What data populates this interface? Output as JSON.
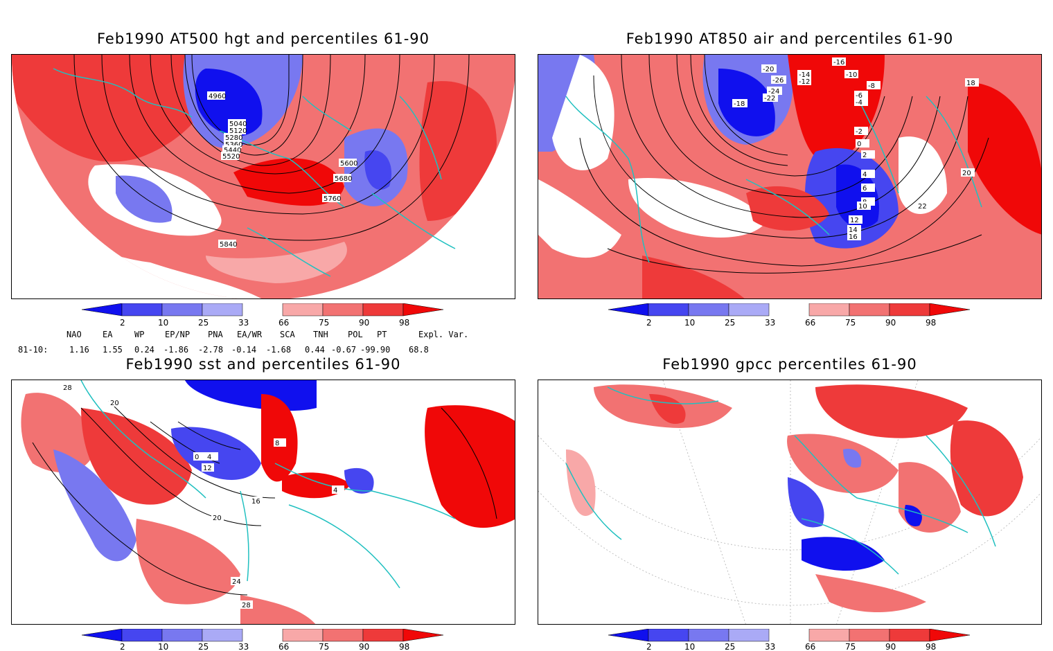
{
  "panels": [
    {
      "id": "p1",
      "title": "Feb1990 AT500 hgt and percentiles 61-90",
      "contour_labels": [
        "4960",
        "5040",
        "5120",
        "5280",
        "5360",
        "5440",
        "5520",
        "5600",
        "5680",
        "5760",
        "5840"
      ]
    },
    {
      "id": "p2",
      "title": "Feb1990 AT850 air and percentiles 61-90",
      "contour_labels": [
        "-16",
        "-14",
        "-12",
        "-10",
        "-8",
        "-6",
        "-4",
        "-2",
        "0",
        "2",
        "4",
        "6",
        "8",
        "10",
        "12",
        "14",
        "16",
        "18",
        "20",
        "22",
        "-18",
        "-20",
        "-26",
        "-24",
        "-22"
      ]
    },
    {
      "id": "p3",
      "title": "Feb1990 sst and percentiles 61-90",
      "contour_labels": [
        "28",
        "20",
        "4",
        "8",
        "0",
        "12",
        "16",
        "20",
        "24",
        "28",
        "4"
      ]
    },
    {
      "id": "p4",
      "title": "Feb1990 gpcc percentiles 61-90",
      "contour_labels": []
    }
  ],
  "colorbar": {
    "ticks": [
      "2",
      "10",
      "25",
      "33",
      "66",
      "75",
      "90",
      "98"
    ],
    "colors": {
      "b1": "#1010ee",
      "b2": "#4646f0",
      "b3": "#7878f0",
      "b4": "#aaaaf6",
      "r1": "#f8a8a8",
      "r2": "#f27272",
      "r3": "#ee3a3a",
      "r4": "#f00808"
    }
  },
  "indices": {
    "headers": [
      "NAO",
      "EA",
      "WP",
      "EP/NP",
      "PNA",
      "EA/WR",
      "SCA",
      "TNH",
      "POL",
      "PT",
      "Expl. Var."
    ],
    "row_label": "81-10:",
    "values": [
      "1.16",
      "1.55",
      "0.24",
      "-1.86",
      "-2.78",
      "-0.14",
      "-1.68",
      "0.44",
      "-0.67",
      "-99.90",
      "68.8"
    ]
  },
  "colors": {
    "coast": "#20c0c0",
    "contour": "#000000",
    "grid": "#b0b0b0"
  }
}
